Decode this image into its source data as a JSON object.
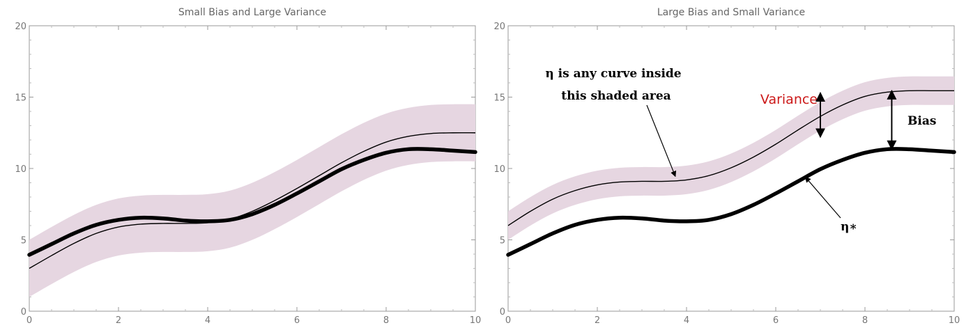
{
  "chart_data": [
    {
      "type": "line",
      "title": "Small Bias and Large Variance",
      "xlim": [
        0,
        10
      ],
      "ylim": [
        0,
        20
      ],
      "x_ticks": [
        0,
        2,
        4,
        6,
        8,
        10
      ],
      "y_ticks": [
        0,
        5,
        10,
        15,
        20
      ],
      "grid": false,
      "band_color": "#e6d6e1",
      "series": [
        {
          "role": "true-curve-thick",
          "x": [
            0,
            0.5,
            1,
            1.5,
            2,
            2.5,
            3,
            3.5,
            4,
            4.5,
            5,
            5.5,
            6,
            6.5,
            7,
            7.5,
            8,
            8.5,
            9,
            9.5,
            10
          ],
          "y": [
            3.95,
            4.7,
            5.45,
            6.05,
            6.4,
            6.55,
            6.5,
            6.35,
            6.3,
            6.4,
            6.8,
            7.45,
            8.25,
            9.1,
            9.95,
            10.6,
            11.1,
            11.35,
            11.35,
            11.25,
            11.15
          ]
        },
        {
          "role": "estimate-curve",
          "x": [
            0,
            0.5,
            1,
            1.5,
            2,
            2.5,
            3,
            3.5,
            4,
            4.5,
            5,
            5.5,
            6,
            6.5,
            7,
            7.5,
            8,
            8.5,
            9,
            9.5,
            10
          ],
          "y": [
            3.0,
            3.9,
            4.75,
            5.45,
            5.9,
            6.1,
            6.15,
            6.15,
            6.2,
            6.45,
            7.0,
            7.75,
            8.6,
            9.5,
            10.4,
            11.2,
            11.85,
            12.25,
            12.45,
            12.5,
            12.5
          ]
        },
        {
          "role": "variance-band-upper",
          "x": [
            0,
            0.5,
            1,
            1.5,
            2,
            2.5,
            3,
            3.5,
            4,
            4.5,
            5,
            5.5,
            6,
            6.5,
            7,
            7.5,
            8,
            8.5,
            9,
            9.5,
            10
          ],
          "y": [
            5.0,
            5.9,
            6.75,
            7.45,
            7.9,
            8.1,
            8.15,
            8.15,
            8.2,
            8.45,
            9.0,
            9.75,
            10.6,
            11.5,
            12.4,
            13.2,
            13.85,
            14.25,
            14.45,
            14.5,
            14.5
          ]
        },
        {
          "role": "variance-band-lower",
          "x": [
            0,
            0.5,
            1,
            1.5,
            2,
            2.5,
            3,
            3.5,
            4,
            4.5,
            5,
            5.5,
            6,
            6.5,
            7,
            7.5,
            8,
            8.5,
            9,
            9.5,
            10
          ],
          "y": [
            1.0,
            1.9,
            2.75,
            3.45,
            3.9,
            4.1,
            4.15,
            4.15,
            4.2,
            4.45,
            5.0,
            5.75,
            6.6,
            7.5,
            8.4,
            9.2,
            9.85,
            10.25,
            10.45,
            10.5,
            10.5
          ]
        }
      ]
    },
    {
      "type": "line",
      "title": "Large Bias and Small Variance",
      "xlim": [
        0,
        10
      ],
      "ylim": [
        0,
        20
      ],
      "x_ticks": [
        0,
        2,
        4,
        6,
        8,
        10
      ],
      "y_ticks": [
        0,
        5,
        10,
        15,
        20
      ],
      "grid": false,
      "band_color": "#e6d6e1",
      "series": [
        {
          "role": "true-curve-thick",
          "x": [
            0,
            0.5,
            1,
            1.5,
            2,
            2.5,
            3,
            3.5,
            4,
            4.5,
            5,
            5.5,
            6,
            6.5,
            7,
            7.5,
            8,
            8.5,
            9,
            9.5,
            10
          ],
          "y": [
            3.95,
            4.7,
            5.45,
            6.05,
            6.4,
            6.55,
            6.5,
            6.35,
            6.3,
            6.4,
            6.8,
            7.45,
            8.25,
            9.1,
            9.95,
            10.6,
            11.1,
            11.35,
            11.35,
            11.25,
            11.15
          ]
        },
        {
          "role": "estimate-curve",
          "x": [
            0,
            0.5,
            1,
            1.5,
            2,
            2.5,
            3,
            3.5,
            4,
            4.5,
            5,
            5.5,
            6,
            6.5,
            7,
            7.5,
            8,
            8.5,
            9,
            9.5,
            10
          ],
          "y": [
            6.0,
            7.0,
            7.85,
            8.45,
            8.85,
            9.05,
            9.1,
            9.1,
            9.2,
            9.5,
            10.05,
            10.8,
            11.7,
            12.7,
            13.65,
            14.45,
            15.05,
            15.35,
            15.45,
            15.45,
            15.45
          ]
        },
        {
          "role": "variance-band-upper",
          "x": [
            0,
            0.5,
            1,
            1.5,
            2,
            2.5,
            3,
            3.5,
            4,
            4.5,
            5,
            5.5,
            6,
            6.5,
            7,
            7.5,
            8,
            8.5,
            9,
            9.5,
            10
          ],
          "y": [
            7.0,
            8.0,
            8.85,
            9.45,
            9.85,
            10.05,
            10.1,
            10.1,
            10.2,
            10.5,
            11.05,
            11.8,
            12.7,
            13.7,
            14.65,
            15.45,
            16.05,
            16.35,
            16.45,
            16.45,
            16.45
          ]
        },
        {
          "role": "variance-band-lower",
          "x": [
            0,
            0.5,
            1,
            1.5,
            2,
            2.5,
            3,
            3.5,
            4,
            4.5,
            5,
            5.5,
            6,
            6.5,
            7,
            7.5,
            8,
            8.5,
            9,
            9.5,
            10
          ],
          "y": [
            5.0,
            6.0,
            6.85,
            7.45,
            7.85,
            8.05,
            8.1,
            8.1,
            8.2,
            8.5,
            9.05,
            9.8,
            10.7,
            11.7,
            12.65,
            13.45,
            14.05,
            14.35,
            14.45,
            14.45,
            14.45
          ]
        }
      ],
      "annotations": {
        "area_label_line1": "η is any curve inside",
        "area_label_line2": "this shaded area",
        "variance_label": "Variance",
        "variance_color": "#cc1a1a",
        "bias_label": "Bias",
        "eta_star_label": "η∗",
        "area_arrow_target": [
          3.75,
          9.15
        ],
        "variance_arrow_x": 7.0,
        "variance_arrow_y": [
          12.2,
          15.3
        ],
        "bias_arrow_x": 8.6,
        "bias_arrow_y": [
          11.35,
          15.45
        ],
        "eta_star_arrow_target": [
          6.6,
          9.6
        ]
      }
    }
  ]
}
